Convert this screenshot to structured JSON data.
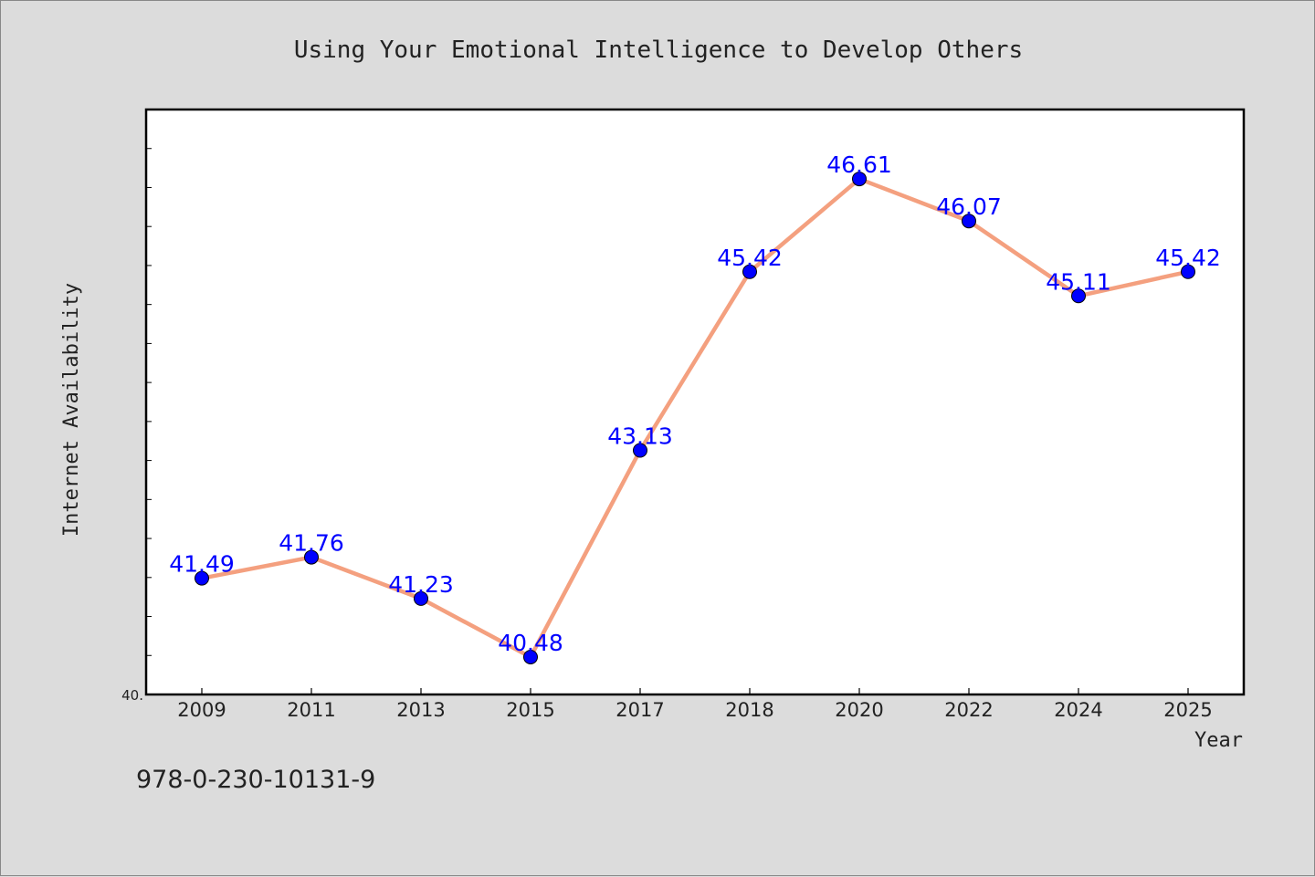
{
  "chart_data": {
    "type": "line",
    "title": "Using Your Emotional Intelligence to Develop Others",
    "xlabel": "Year",
    "ylabel": "Internet Availability",
    "categories": [
      "2009",
      "2011",
      "2013",
      "2015",
      "2017",
      "2018",
      "2020",
      "2022",
      "2024",
      "2025"
    ],
    "values": [
      41.49,
      41.76,
      41.23,
      40.48,
      43.13,
      45.42,
      46.61,
      46.07,
      45.11,
      45.42
    ],
    "data_labels": [
      "41.49",
      "41.76",
      "41.23",
      "40.48",
      "43.13",
      "45.42",
      "46.61",
      "46.07",
      "45.11",
      "45.42"
    ],
    "ylim": [
      40,
      47.5
    ],
    "ytick_labels": [
      "40."
    ],
    "grid": false,
    "legend": "none",
    "line_color": "#f4a07f",
    "marker_color": "#0000ff",
    "label_color": "#0000ff"
  },
  "footer": {
    "isbn": "978-0-230-10131-9"
  }
}
